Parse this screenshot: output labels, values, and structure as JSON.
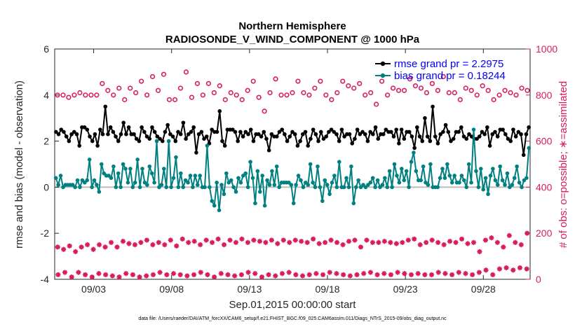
{
  "chart_data": {
    "type": "line",
    "title": "Northern Hemisphere",
    "subtitle": "RADIOSONDE_V_WIND_COMPONENT @ 1000 hPa",
    "xlabel": "Sep.01,2015 00:00:00 start",
    "ylabel": "rmse and bias (model - observation)",
    "ylabel_right": "# of obs: o=possible; ∗=assimilated",
    "footnote": "data file: /Users/raeder/DAI/ATM_forcXX/CAM6_setup/f.e21.FHIST_BGC.f09_025.CAM6assim.011/Diags_NTrS_2015-09/obs_diag_output.nc",
    "xlim": [
      0.5,
      31.0
    ],
    "ylim": [
      -4,
      6
    ],
    "ylim_right": [
      0,
      1000
    ],
    "yticks": [
      -4,
      -2,
      0,
      2,
      4,
      6
    ],
    "yticks_right": [
      0,
      200,
      400,
      600,
      800,
      1000
    ],
    "xtick_days": [
      3,
      8,
      13,
      18,
      23,
      28
    ],
    "xtick_labels": [
      "09/03",
      "09/08",
      "09/13",
      "09/18",
      "09/23",
      "09/28"
    ],
    "legend_position": "top-right",
    "colors": {
      "rmse": "#000000",
      "bias": "#008080",
      "obs": "#d81b60",
      "zero_line": "#bdbdbd",
      "legend_text": "#0000ff"
    },
    "series": [
      {
        "name": "rmse grand pr = 2.2975",
        "legend_label": "rmse grand pr = 2.2975",
        "values": [
          2.4,
          2.3,
          2.5,
          2.4,
          2.2,
          2.0,
          2.3,
          2.4,
          2.3,
          1.8,
          2.6,
          2.6,
          2.5,
          2.2,
          2.0,
          2.3,
          1.8,
          2.5,
          2.3,
          3.5,
          2.3,
          2.6,
          2.4,
          2.2,
          2.0,
          2.3,
          2.8,
          2.3,
          2.6,
          2.3,
          2.3,
          2.1,
          2.0,
          2.6,
          2.4,
          2.2,
          2.1,
          2.6,
          2.4,
          2.2,
          2.1,
          2.0,
          2.4,
          2.7,
          2.3,
          2.2,
          2.0,
          2.4,
          2.3,
          2.8,
          2.1,
          2.3,
          2.4,
          2.6,
          1.5,
          2.3,
          2.4,
          2.1,
          2.2,
          1.9,
          2.5,
          2.4,
          2.4,
          3.3,
          2.0,
          1.8,
          2.5,
          2.5,
          2.5,
          2.4,
          2.0,
          2.4,
          2.2,
          2.4,
          2.3,
          2.5,
          2.0,
          2.3,
          2.3,
          2.2,
          2.4,
          2.1,
          1.6,
          2.3,
          2.2,
          2.2,
          2.4,
          2.5,
          2.3,
          2.0,
          2.2,
          2.4,
          2.3,
          1.8,
          2.0,
          2.3,
          2.4,
          1.8,
          2.1,
          2.5,
          2.3,
          2.0,
          2.4,
          2.1,
          2.2,
          2.4,
          2.5,
          2.4,
          2.3,
          2.0,
          2.5,
          2.2,
          2.3,
          2.3,
          1.9,
          2.1,
          2.5,
          2.3,
          2.4,
          2.3,
          2.0,
          2.4,
          2.3,
          2.6,
          2.1,
          2.3,
          2.3,
          2.5,
          2.4,
          2.4,
          2.2,
          2.5,
          1.9,
          2.5,
          2.1,
          2.4,
          2.4,
          2.2,
          1.7,
          2.6,
          2.2,
          2.0,
          3.0,
          2.2,
          2.0,
          3.5,
          2.2,
          1.9,
          2.3,
          2.4,
          2.7,
          2.4,
          2.0,
          2.1,
          2.4,
          2.4,
          2.6,
          2.2,
          2.1,
          2.3,
          2.2,
          2.1,
          2.1,
          2.2,
          2.4,
          2.3,
          2.6,
          1.8,
          2.3,
          2.4,
          2.2,
          2.5,
          2.5,
          2.3,
          2.1,
          2.0,
          2.5,
          2.2,
          2.4,
          2.3,
          1.4,
          2.3,
          2.6
        ]
      },
      {
        "name": "bias grand pr = 0.18244",
        "legend_label": "bias grand pr = 0.18244",
        "values": [
          0.4,
          0.1,
          0.5,
          0.0,
          0.1,
          0.1,
          0.1,
          0.1,
          0.0,
          0.3,
          0.0,
          0.3,
          0.2,
          0.3,
          1.2,
          0.0,
          0.3,
          0.1,
          -0.2,
          1.0,
          0.6,
          0.5,
          0.5,
          0.4,
          0.9,
          0.0,
          0.6,
          0.0,
          1.0,
          0.8,
          0.2,
          0.8,
          0.0,
          0.2,
          1.2,
          0.0,
          0.8,
          0.2,
          0.1,
          0.9,
          0.6,
          0.2,
          2.0,
          0.0,
          0.1,
          0.8,
          0.0,
          2.0,
          0.0,
          0.4,
          1.3,
          0.0,
          0.6,
          0.0,
          0.3,
          0.2,
          0.5,
          0.0,
          0.5,
          0.1,
          0.5,
          0.0,
          0.0,
          1.8,
          0.0,
          -0.6,
          -0.8,
          0.2,
          -1.0,
          0.1,
          -0.3,
          0.6,
          0.2,
          0.3,
          0.0,
          -0.2,
          0.4,
          0.2,
          0.5,
          0.6,
          0.0,
          1.1,
          0.4,
          -0.7,
          0.7,
          -0.2,
          0.5,
          -0.8,
          0.3,
          0.1,
          0.7,
          0.1,
          0.9,
          0.0,
          0.2,
          0.2,
          0.2,
          0.2,
          0.1,
          -0.7,
          0.1,
          0.5,
          0.3,
          0.0,
          0.2,
          0.1,
          1.0,
          0.2,
          0.0,
          0.9,
          0.0,
          -0.6,
          0.3,
          0.1,
          -0.3,
          0.2,
          0.5,
          0.0,
          1.1,
          0.0,
          0.0,
          0.4,
          0.0,
          0.9,
          -0.7,
          0.0,
          0.3,
          0.0,
          0.1,
          0.0,
          0.1,
          0.2,
          0.4,
          0.0,
          0.3,
          0.0,
          0.1,
          0.4,
          0.0,
          0.7,
          0.0,
          1.0,
          0.5,
          0.2,
          0.8,
          0.3,
          0.7,
          0.0,
          1.1,
          1.5,
          0.7,
          0.3,
          0.3,
          0.9,
          0.2,
          0.1,
          1.0,
          0.0,
          0.0,
          0.0,
          0.4,
          0.8,
          0.4,
          1.0,
          0.5,
          0.2,
          0.5,
          0.2,
          0.2,
          0.5,
          0.3,
          0.0,
          1.0,
          0.2,
          2.5,
          0.7,
          0.0,
          0.8,
          -0.1,
          0.4,
          -0.3,
          0.5,
          0.8,
          0.3,
          0.1,
          0.9,
          0.3,
          0.1,
          0.6,
          0.0,
          0.1,
          0.4,
          0.9,
          0.2,
          0.0,
          0.3,
          0.4,
          1.7
        ]
      }
    ],
    "obs_possible": [
      800,
      800,
      790,
      800,
      810,
      800,
      800,
      800,
      850,
      820,
      800,
      830,
      780,
      830,
      810,
      860,
      800,
      880,
      820,
      890,
      780,
      780,
      830,
      900,
      790,
      850,
      800,
      850,
      810,
      840,
      780,
      810,
      800,
      780,
      820,
      860,
      790,
      730,
      810,
      870,
      800,
      800,
      810,
      860,
      810,
      800,
      830,
      860,
      800,
      780,
      810,
      860,
      840,
      830,
      850,
      800,
      810,
      760,
      860,
      800,
      830,
      820,
      820,
      870,
      840,
      830,
      810,
      850,
      820,
      880,
      810,
      810,
      780,
      830,
      820,
      800,
      840,
      820,
      780,
      800,
      820,
      810,
      800,
      830,
      820
    ],
    "obs_assimilated": [
      140,
      130,
      145,
      120,
      140,
      150,
      130,
      150,
      140,
      160,
      140,
      165,
      155,
      150,
      160,
      170,
      150,
      160,
      150,
      170,
      145,
      175,
      160,
      165,
      150,
      170,
      160,
      175,
      150,
      170,
      160,
      175,
      160,
      170,
      165,
      160,
      170,
      155,
      170,
      160,
      170,
      165,
      160,
      175,
      155,
      160,
      170,
      160,
      150,
      165,
      170,
      140,
      170,
      160,
      160,
      165,
      160,
      155,
      160,
      170,
      175,
      150,
      160,
      170,
      160,
      150,
      165,
      160,
      175,
      155,
      160,
      120,
      170,
      180,
      160,
      140,
      190,
      160,
      150,
      200
    ],
    "obs_assimilated_low": [
      20,
      30,
      10,
      30,
      20,
      10,
      25,
      20,
      15,
      10,
      25,
      20,
      10,
      15,
      20,
      30,
      20,
      25,
      20,
      15,
      20,
      30,
      20,
      10,
      25,
      20,
      15,
      20,
      30,
      25,
      10,
      20,
      15,
      25,
      30,
      20,
      15,
      20,
      25,
      20,
      30,
      25,
      20,
      15,
      20,
      25,
      30,
      20,
      25,
      20,
      30,
      25,
      20,
      25,
      20,
      20,
      30,
      25,
      20,
      30,
      25,
      20,
      30,
      40,
      20,
      45,
      50,
      40,
      50,
      45
    ]
  }
}
